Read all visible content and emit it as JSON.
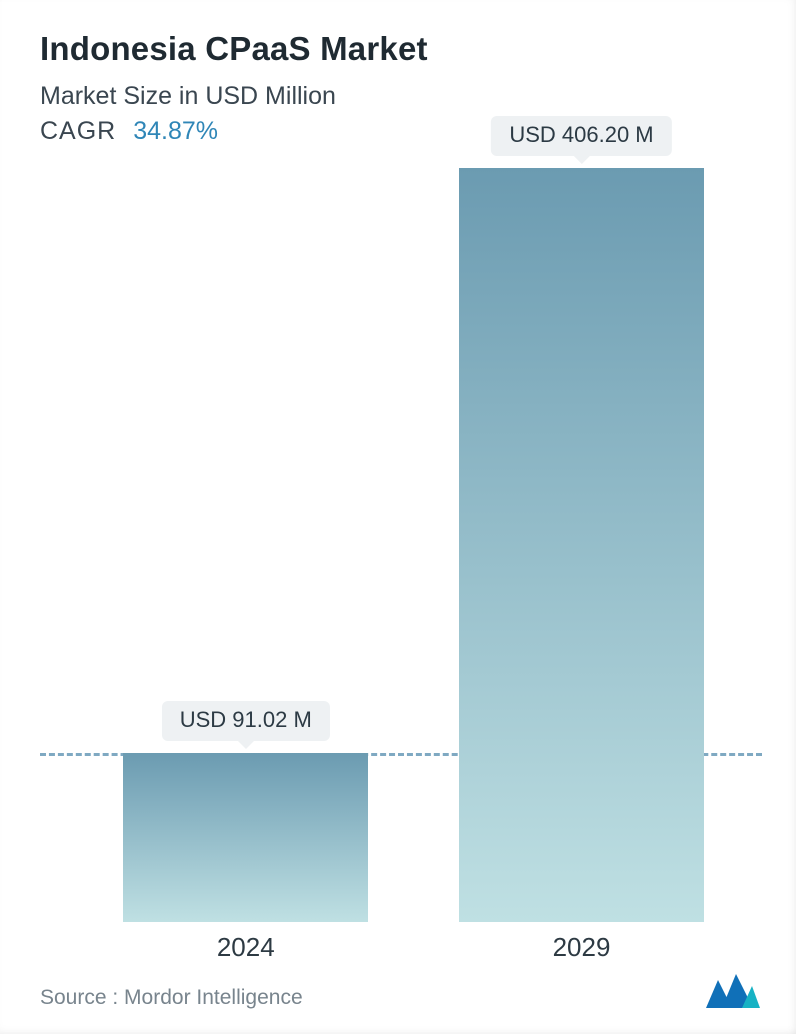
{
  "header": {
    "title": "Indonesia CPaaS Market",
    "subtitle": "Market Size in USD Million",
    "cagr_label": "CAGR",
    "cagr_value": "34.87%",
    "title_color": "#1f2a32",
    "subtitle_color": "#3a4650",
    "cagr_value_color": "#2f86b7",
    "title_fontsize": 33,
    "subtitle_fontsize": 25
  },
  "chart": {
    "type": "bar",
    "background_color": "#ffffff",
    "y_max": 406.2,
    "dashed_reference_value": 91.02,
    "dashed_line_color": "#7fa9c2",
    "dashed_line_width": 3,
    "bar_width_pct": 34,
    "bar_gradient_top": "#6b9bb1",
    "bar_gradient_bottom": "#bfe0e3",
    "pill_bg": "#eef1f3",
    "pill_text_color": "#2c3a44",
    "pill_fontsize": 22,
    "x_label_fontsize": 26,
    "x_label_color": "#2d3a43",
    "bars": [
      {
        "category": "2024",
        "value": 91.02,
        "value_label": "USD 91.02 M",
        "center_pct": 28.5
      },
      {
        "category": "2029",
        "value": 406.2,
        "value_label": "USD 406.20 M",
        "center_pct": 75.0
      }
    ]
  },
  "footer": {
    "source_text": "Source :  Mordor Intelligence",
    "source_color": "#78848d",
    "source_fontsize": 21,
    "logo_name": "mordor-intelligence-logo",
    "logo_primary": "#1070b8",
    "logo_accent": "#17b2c4"
  }
}
